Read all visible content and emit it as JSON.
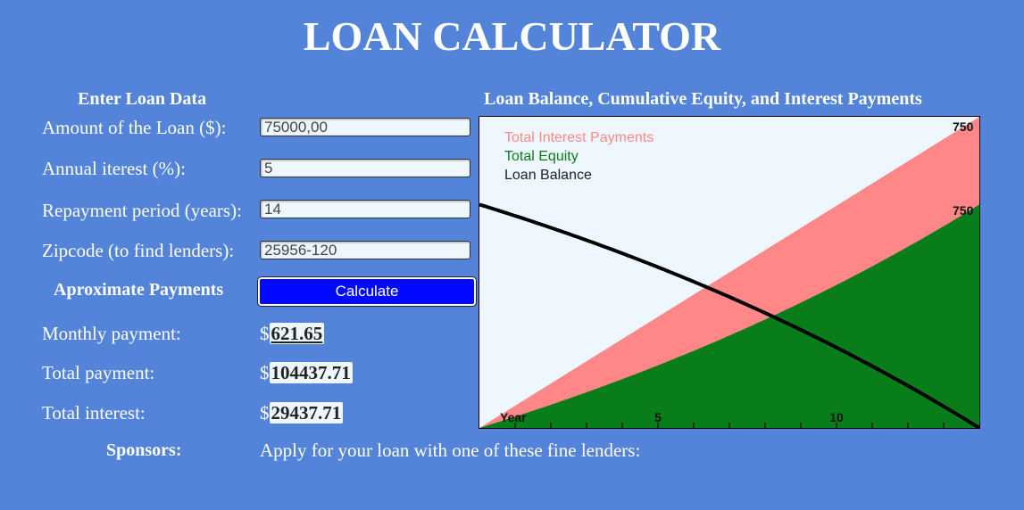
{
  "header": {
    "title": "LOAN CALCULATOR"
  },
  "form": {
    "section_title": "Enter Loan Data",
    "fields": [
      {
        "label": "Amount of the Loan ($):",
        "value": "75000,00"
      },
      {
        "label": "Annual iterest (%):",
        "value": "5"
      },
      {
        "label": "Repayment period (years):",
        "value": "14"
      },
      {
        "label": "Zipcode (to find lenders):",
        "value": "25956-120"
      }
    ]
  },
  "payments": {
    "section_title": "Aproximate Payments",
    "calculate_label": "Calculate",
    "currency": "$",
    "rows": [
      {
        "label": "Monthly payment:",
        "value": "621.65"
      },
      {
        "label": "Total payment:",
        "value": "104437.71"
      },
      {
        "label": "Total interest:",
        "value": "29437.71"
      }
    ]
  },
  "sponsors": {
    "label": "Sponsors:",
    "text": "Apply for your loan with one of these fine lenders:"
  },
  "chart_data": {
    "type": "area",
    "title": "Loan Balance, Cumulative Equity, and Interest Payments",
    "xlabel": "Year",
    "xlim": [
      0,
      14
    ],
    "ylim": [
      0,
      104437.71
    ],
    "x_ticks": [
      5,
      10
    ],
    "y_tick_labels_visible": [
      "750",
      "750"
    ],
    "principal": 75000,
    "annual_rate_percent": 5,
    "years": 14,
    "monthly_payment": 621.65,
    "legend_position": "top-left",
    "series": [
      {
        "name": "Total Interest Payments",
        "color": "#ff8787"
      },
      {
        "name": "Total Equity",
        "color": "#087d1a"
      },
      {
        "name": "Loan Balance",
        "color": "#000000"
      }
    ]
  }
}
